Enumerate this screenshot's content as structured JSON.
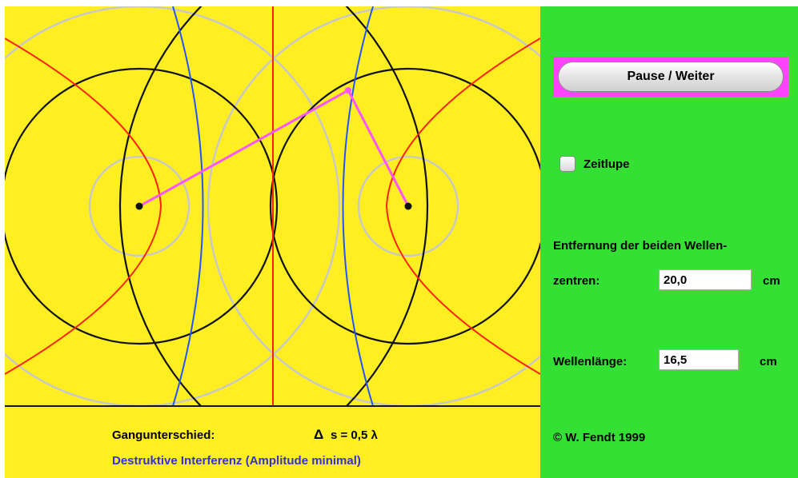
{
  "simulation": {
    "gangunterschied_label": "Gangunterschied:",
    "delta_symbol": "Δ",
    "delta_value": "s = 0,5 λ",
    "result_text": "Destruktive Interferenz (Amplitude minimal)",
    "colors": {
      "background": "#ffee22",
      "wavefront_crest": "#111111",
      "wavefront_trough": "#c8c8c8",
      "maxima_line": "#ff2200",
      "minima_line": "#2255ff",
      "path_line": "#ff55ff",
      "result_text": "#3333cc"
    }
  },
  "controls": {
    "pause_button_label": "Pause / Weiter",
    "slow_motion_label": "Zeitlupe",
    "slow_motion_checked": false,
    "distance_label_line1": "Entfernung der beiden Wellen-",
    "distance_label_line2": "zentren:",
    "distance_value": "20,0",
    "distance_unit": "cm",
    "wavelength_label": "Wellenlänge:",
    "wavelength_value": "16,5",
    "wavelength_unit": "cm",
    "copyright": "© W. Fendt 1999"
  }
}
